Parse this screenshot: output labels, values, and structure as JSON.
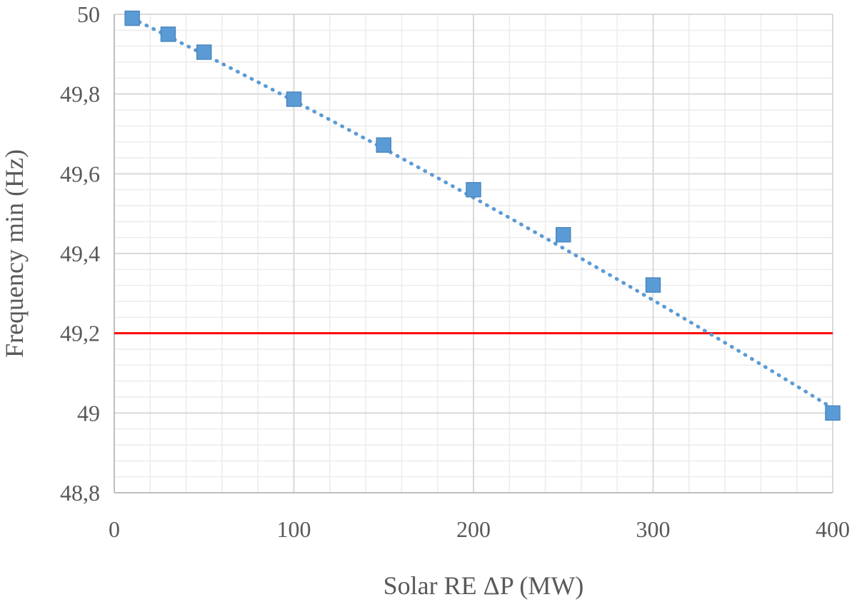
{
  "chart_data": {
    "type": "scatter",
    "xlabel": "Solar RE ΔP (MW)",
    "ylabel": "Frequency min (Hz)",
    "xlim": [
      0,
      400
    ],
    "ylim": [
      48.8,
      50
    ],
    "x_ticks": [
      "0",
      "100",
      "200",
      "300",
      "400"
    ],
    "y_ticks": [
      "48,8",
      "49",
      "49,2",
      "49,4",
      "49,6",
      "49,8",
      "50"
    ],
    "grid": true,
    "legend": "none",
    "series": [
      {
        "x": [
          10,
          30,
          50,
          100,
          150,
          200,
          250,
          300,
          400
        ],
        "y": [
          49.99,
          49.95,
          49.905,
          49.787,
          49.672,
          49.56,
          49.447,
          49.321,
          49.0
        ],
        "marker": "square",
        "color": "#5B9BD5"
      }
    ],
    "trendline": {
      "style": "dotted",
      "color": "#5B9BD5",
      "x_range": [
        10,
        400
      ],
      "coefficients": {
        "a": -7e-07,
        "b": -0.00222,
        "c": 50.012
      }
    },
    "reference_line": {
      "y": 49.2,
      "color": "#FF0000"
    }
  }
}
